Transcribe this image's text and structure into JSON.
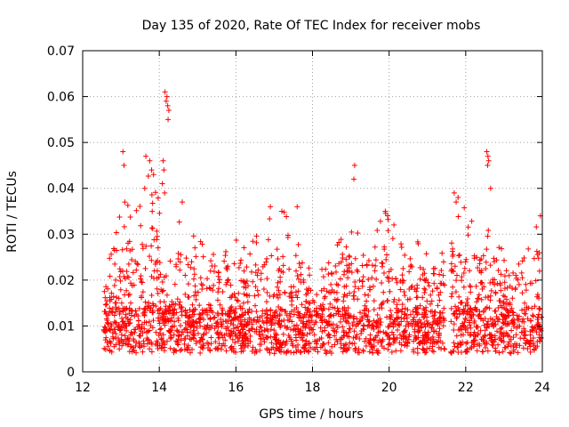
{
  "chart_data": {
    "type": "scatter",
    "title": "Day 135 of 2020, Rate Of TEC Index for receiver mobs",
    "xlabel": "GPS time / hours",
    "ylabel": "ROTI / TECUs",
    "xlim": [
      12,
      24
    ],
    "ylim": [
      0,
      0.07
    ],
    "grid": true,
    "marker": "+",
    "color": "#ff0000",
    "x_ticks": [
      12,
      14,
      16,
      18,
      20,
      22,
      24
    ],
    "x_tick_labels": [
      "12",
      "14",
      "16",
      "18",
      "20",
      "22",
      "24"
    ],
    "y_ticks": [
      0,
      0.01,
      0.02,
      0.03,
      0.04,
      0.05,
      0.06,
      0.07
    ],
    "y_tick_labels": [
      "0",
      "0.01",
      "0.02",
      "0.03",
      "0.04",
      "0.05",
      "0.06",
      "0.07"
    ],
    "series": [
      {
        "name": "ROTI",
        "data_range": {
          "x": [
            12.55,
            23.98
          ],
          "y": [
            0.002,
            0.061
          ]
        },
        "envelope": [
          {
            "x": 12.6,
            "typical_max": 0.022
          },
          {
            "x": 12.9,
            "typical_max": 0.033
          },
          {
            "x": 13.1,
            "typical_max": 0.038
          },
          {
            "x": 13.7,
            "typical_max": 0.045
          },
          {
            "x": 14.0,
            "typical_max": 0.04
          },
          {
            "x": 14.4,
            "typical_max": 0.028
          },
          {
            "x": 14.6,
            "typical_max": 0.036
          },
          {
            "x": 15.2,
            "typical_max": 0.028
          },
          {
            "x": 15.8,
            "typical_max": 0.031
          },
          {
            "x": 16.5,
            "typical_max": 0.029
          },
          {
            "x": 16.9,
            "typical_max": 0.036
          },
          {
            "x": 17.4,
            "typical_max": 0.035
          },
          {
            "x": 18.0,
            "typical_max": 0.022
          },
          {
            "x": 18.7,
            "typical_max": 0.03
          },
          {
            "x": 19.0,
            "typical_max": 0.032
          },
          {
            "x": 19.5,
            "typical_max": 0.031
          },
          {
            "x": 19.9,
            "typical_max": 0.035
          },
          {
            "x": 20.6,
            "typical_max": 0.029
          },
          {
            "x": 21.3,
            "typical_max": 0.026
          },
          {
            "x": 21.7,
            "typical_max": 0.039
          },
          {
            "x": 22.3,
            "typical_max": 0.033
          },
          {
            "x": 22.7,
            "typical_max": 0.03
          },
          {
            "x": 23.3,
            "typical_max": 0.025
          },
          {
            "x": 23.9,
            "typical_max": 0.033
          }
        ],
        "gaps": [
          [
            21.45,
            21.6
          ]
        ],
        "outliers": [
          {
            "x": 13.05,
            "y": 0.048
          },
          {
            "x": 13.08,
            "y": 0.045
          },
          {
            "x": 13.1,
            "y": 0.037
          },
          {
            "x": 13.65,
            "y": 0.047
          },
          {
            "x": 13.75,
            "y": 0.046
          },
          {
            "x": 13.8,
            "y": 0.044
          },
          {
            "x": 13.85,
            "y": 0.043
          },
          {
            "x": 13.62,
            "y": 0.04
          },
          {
            "x": 14.15,
            "y": 0.061
          },
          {
            "x": 14.2,
            "y": 0.06
          },
          {
            "x": 14.18,
            "y": 0.059
          },
          {
            "x": 14.22,
            "y": 0.058
          },
          {
            "x": 14.25,
            "y": 0.057
          },
          {
            "x": 14.23,
            "y": 0.055
          },
          {
            "x": 14.1,
            "y": 0.046
          },
          {
            "x": 14.12,
            "y": 0.044
          },
          {
            "x": 14.08,
            "y": 0.041
          },
          {
            "x": 14.14,
            "y": 0.039
          },
          {
            "x": 14.6,
            "y": 0.037
          },
          {
            "x": 16.9,
            "y": 0.036
          },
          {
            "x": 17.2,
            "y": 0.035
          },
          {
            "x": 17.6,
            "y": 0.036
          },
          {
            "x": 19.1,
            "y": 0.045
          },
          {
            "x": 19.08,
            "y": 0.042
          },
          {
            "x": 19.9,
            "y": 0.035
          },
          {
            "x": 21.7,
            "y": 0.039
          },
          {
            "x": 21.8,
            "y": 0.038
          },
          {
            "x": 21.75,
            "y": 0.037
          },
          {
            "x": 22.55,
            "y": 0.048
          },
          {
            "x": 22.58,
            "y": 0.047
          },
          {
            "x": 22.6,
            "y": 0.046
          },
          {
            "x": 22.57,
            "y": 0.045
          },
          {
            "x": 22.65,
            "y": 0.04
          },
          {
            "x": 23.95,
            "y": 0.034
          }
        ]
      }
    ]
  }
}
